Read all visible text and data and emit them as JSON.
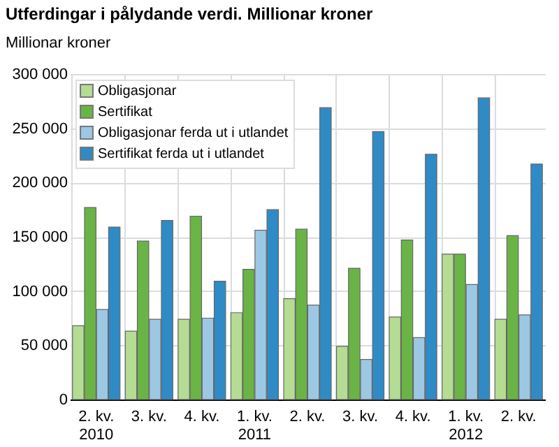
{
  "chart_data": {
    "type": "bar",
    "title": "Utferdingar i pålydande verdi. Millionar kroner",
    "ylabel": "Millionar kroner",
    "categories": [
      "2. kv.\n2010",
      "3. kv.",
      "4. kv.",
      "1. kv.\n2011",
      "2. kv.",
      "3. kv.",
      "4. kv.",
      "1. kv.\n2012",
      "2. kv."
    ],
    "series": [
      {
        "name": "Obligasjonar",
        "color": "#b5dc93",
        "values": [
          68000,
          63000,
          74000,
          80000,
          93000,
          49000,
          76000,
          134000,
          74000
        ]
      },
      {
        "name": "Sertifikat",
        "color": "#6ab446",
        "values": [
          177000,
          146000,
          169000,
          120000,
          157000,
          121000,
          147000,
          134000,
          151000
        ]
      },
      {
        "name": "Obligasjonar ferda ut i utlandet",
        "color": "#9cc8e4",
        "values": [
          83000,
          74000,
          75000,
          156000,
          87000,
          37000,
          57000,
          106000,
          78000
        ]
      },
      {
        "name": "Sertifikat ferda ut i utlandet",
        "color": "#2f8bc6",
        "values": [
          159000,
          165000,
          109000,
          175000,
          269000,
          247000,
          226000,
          278000,
          217000
        ]
      }
    ],
    "ylim": [
      0,
      300000
    ],
    "yticks": [
      0,
      {
        "value": 50000,
        "label": "50 000"
      },
      {
        "value": 100000,
        "label": "100 000"
      },
      {
        "value": 150000,
        "label": "150 000"
      },
      {
        "value": 200000,
        "label": "200 000"
      },
      {
        "value": 250000,
        "label": "250 000"
      },
      {
        "value": 300000,
        "label": "300 000"
      }
    ],
    "grid": true,
    "legend": "top left"
  }
}
